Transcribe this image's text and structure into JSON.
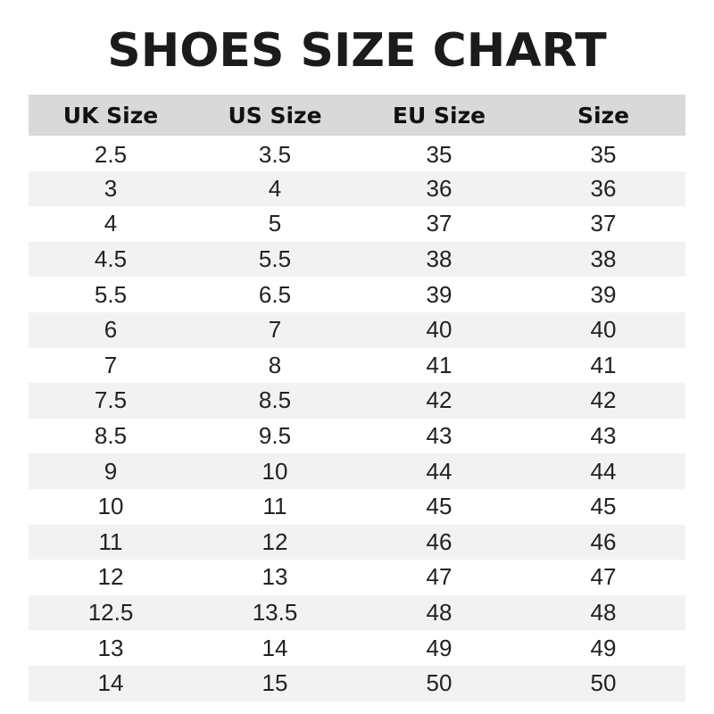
{
  "title": "SHOES SIZE CHART",
  "colors": {
    "header_bg": "#d9d9d9",
    "stripe_bg": "#f2f2f2",
    "text": "#1b1b1b"
  },
  "chart_data": {
    "type": "table",
    "title": "SHOES SIZE CHART",
    "columns": [
      "UK Size",
      "US Size",
      "EU Size",
      "Size"
    ],
    "rows": [
      [
        "2.5",
        "3.5",
        "35",
        "35"
      ],
      [
        "3",
        "4",
        "36",
        "36"
      ],
      [
        "4",
        "5",
        "37",
        "37"
      ],
      [
        "4.5",
        "5.5",
        "38",
        "38"
      ],
      [
        "5.5",
        "6.5",
        "39",
        "39"
      ],
      [
        "6",
        "7",
        "40",
        "40"
      ],
      [
        "7",
        "8",
        "41",
        "41"
      ],
      [
        "7.5",
        "8.5",
        "42",
        "42"
      ],
      [
        "8.5",
        "9.5",
        "43",
        "43"
      ],
      [
        "9",
        "10",
        "44",
        "44"
      ],
      [
        "10",
        "11",
        "45",
        "45"
      ],
      [
        "11",
        "12",
        "46",
        "46"
      ],
      [
        "12",
        "13",
        "47",
        "47"
      ],
      [
        "12.5",
        "13.5",
        "48",
        "48"
      ],
      [
        "13",
        "14",
        "49",
        "49"
      ],
      [
        "14",
        "15",
        "50",
        "50"
      ]
    ]
  }
}
